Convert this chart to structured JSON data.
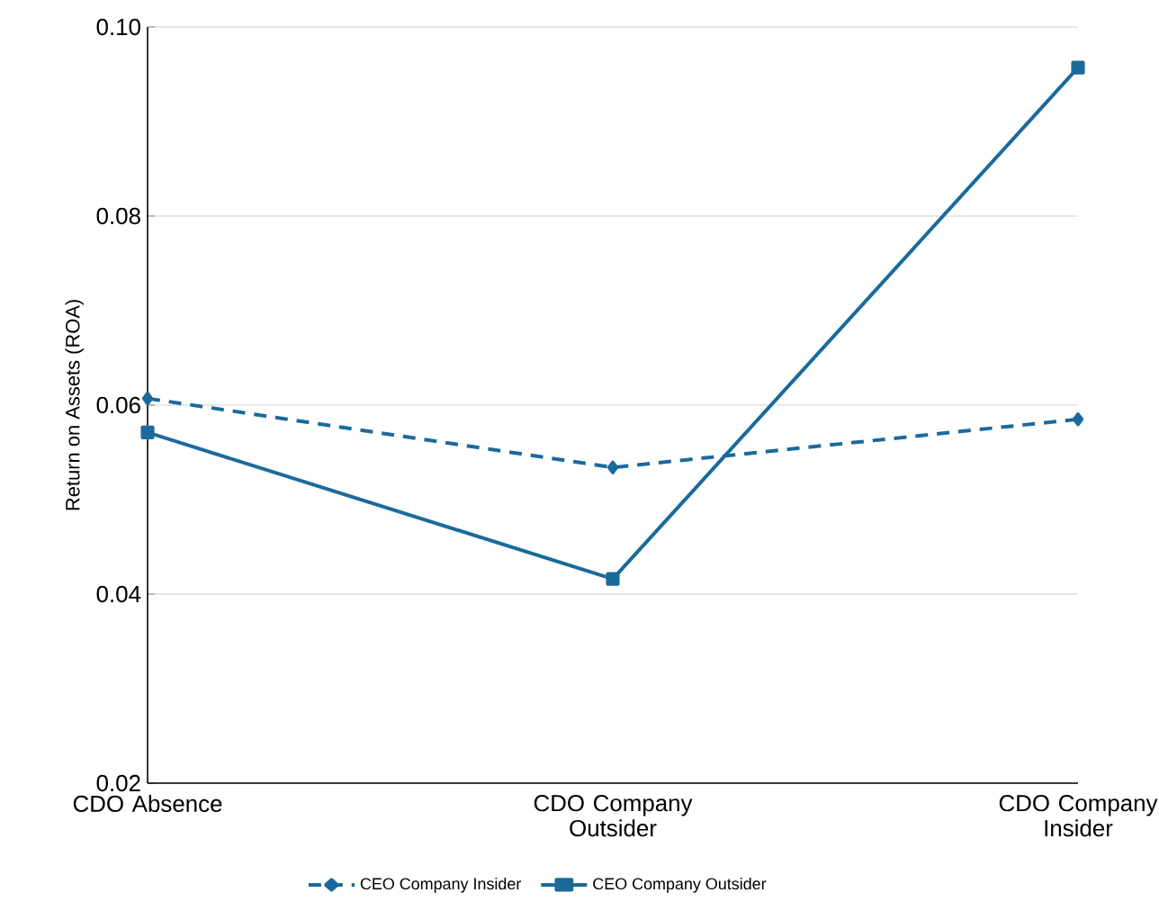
{
  "chart_data": {
    "type": "line",
    "ylabel": "Return  on Assets  (ROA)",
    "categories": [
      "CDO Absence",
      "CDO Company Outsider",
      "CDO Company Insider"
    ],
    "series": [
      {
        "name": "CEO Company  Insider",
        "color": "#1b6a9c",
        "values": [
          0.0607,
          0.0534,
          0.0585
        ],
        "marker": "diamond",
        "line_style": "dashed"
      },
      {
        "name": "CEO Company  Outsider",
        "color": "#1b6a9c",
        "values": [
          0.0571,
          0.0416,
          0.0957
        ],
        "marker": "square",
        "line_style": "solid"
      }
    ],
    "ylim": [
      0.02,
      0.1
    ],
    "yticks": [
      0.02,
      0.04,
      0.06,
      0.08,
      {
        "value": 0.1,
        "label": "0.10"
      }
    ],
    "grid": "y",
    "legend": "bottom"
  }
}
